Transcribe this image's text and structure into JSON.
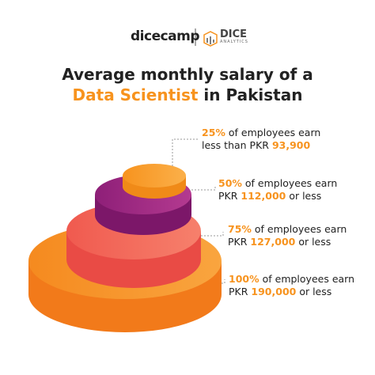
{
  "header": {
    "brand": "dicecamp",
    "partner": {
      "name": "DICE",
      "tagline": "ANALYTICS"
    }
  },
  "title": {
    "line1": "Average monthly salary of a",
    "highlight": "Data Scientist",
    "rest": "in Pakistan"
  },
  "tiers": [
    {
      "percent": "25%",
      "line1": "of employees earn",
      "prefix": "less than PKR",
      "amount": "93,900"
    },
    {
      "percent": "50%",
      "line1": "of employees earn",
      "prefix": "PKR",
      "amount": "112,000",
      "suffix": "or less"
    },
    {
      "percent": "75%",
      "line1": "of employees earn",
      "prefix": "PKR",
      "amount": "127,000",
      "suffix": "or less"
    },
    {
      "percent": "100%",
      "line1": "of employees earn",
      "prefix": "PKR",
      "amount": "190,000",
      "suffix": "or less"
    }
  ]
}
